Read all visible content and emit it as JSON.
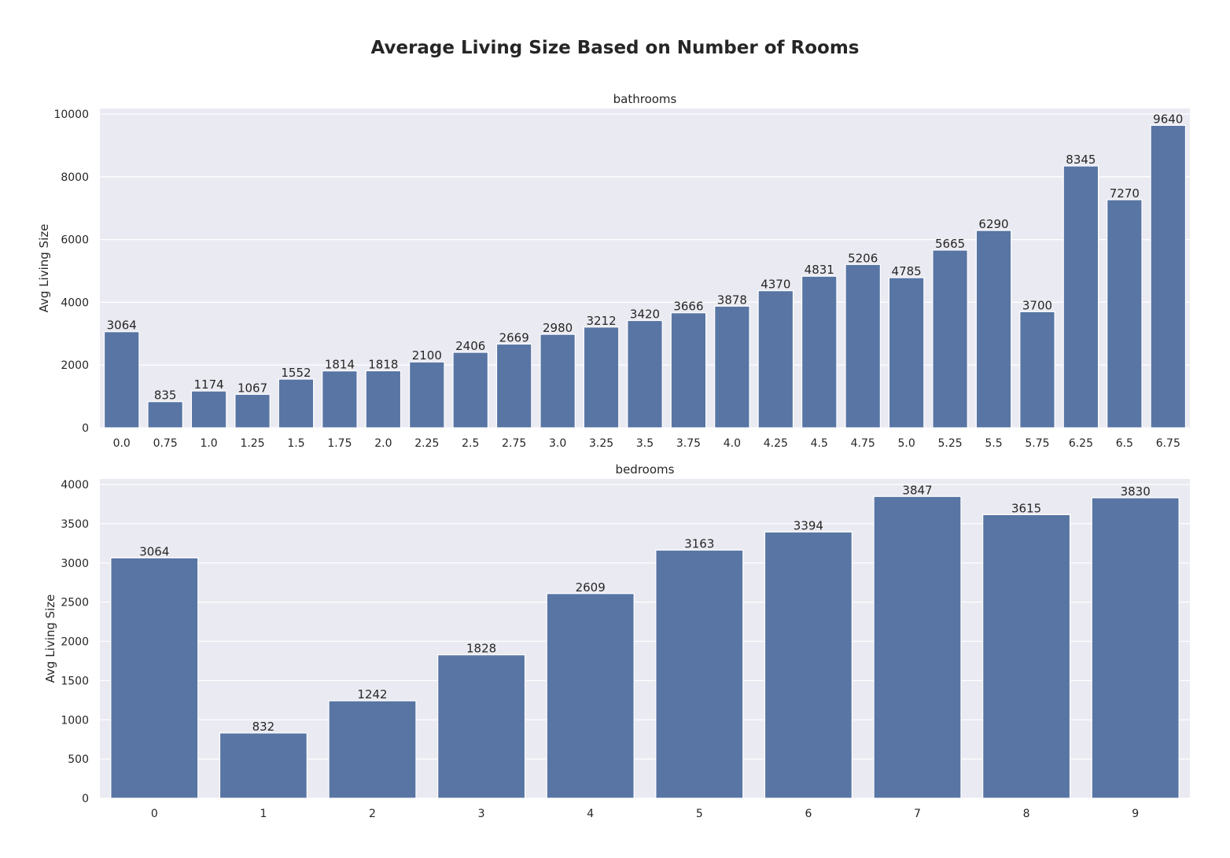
{
  "title": "Average Living Size Based on Number of Rooms",
  "bar_color": "#5875a4",
  "background_color": "#eaeaf2",
  "chart_data": [
    {
      "type": "bar",
      "title": "bathrooms",
      "xlabel": "",
      "ylabel": "Avg Living Size",
      "ylim": [
        0,
        10000
      ],
      "yticks": [
        0,
        2000,
        4000,
        6000,
        8000,
        10000
      ],
      "grid": true,
      "categories": [
        "0.0",
        "0.75",
        "1.0",
        "1.25",
        "1.5",
        "1.75",
        "2.0",
        "2.25",
        "2.5",
        "2.75",
        "3.0",
        "3.25",
        "3.5",
        "3.75",
        "4.0",
        "4.25",
        "4.5",
        "4.75",
        "5.0",
        "5.25",
        "5.5",
        "5.75",
        "6.25",
        "6.5",
        "6.75"
      ],
      "values": [
        3064,
        835,
        1174,
        1067,
        1552,
        1814,
        1818,
        2100,
        2406,
        2669,
        2980,
        3212,
        3420,
        3666,
        3878,
        4370,
        4831,
        5206,
        4785,
        5665,
        6290,
        3700,
        8345,
        7270,
        9640
      ]
    },
    {
      "type": "bar",
      "title": "bedrooms",
      "xlabel": "",
      "ylabel": "Avg Living Size",
      "ylim": [
        0,
        4000
      ],
      "yticks": [
        0,
        500,
        1000,
        1500,
        2000,
        2500,
        3000,
        3500,
        4000
      ],
      "grid": true,
      "categories": [
        "0",
        "1",
        "2",
        "3",
        "4",
        "5",
        "6",
        "7",
        "8",
        "9"
      ],
      "values": [
        3064,
        832,
        1242,
        1828,
        2609,
        3163,
        3394,
        3847,
        3615,
        3830
      ]
    }
  ]
}
